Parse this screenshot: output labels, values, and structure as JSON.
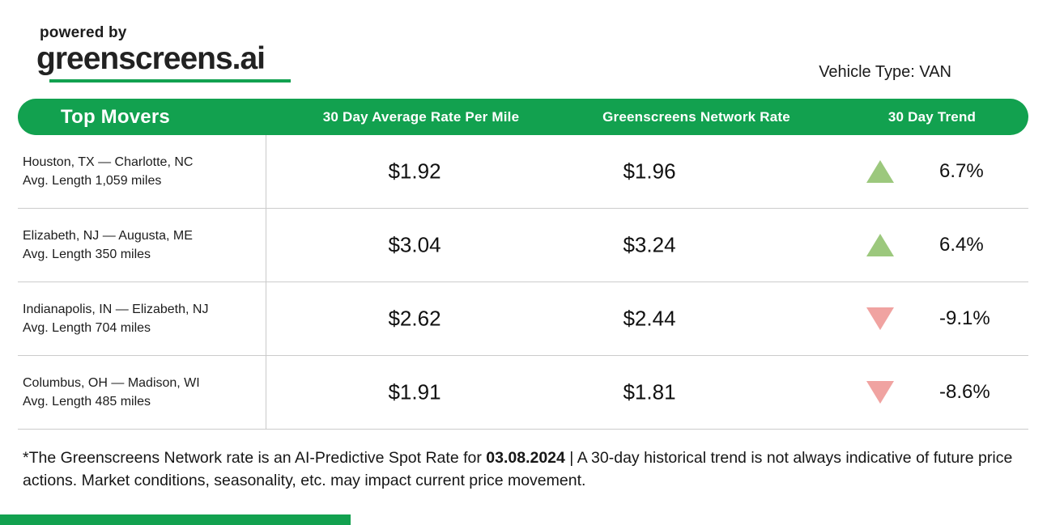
{
  "branding": {
    "powered_by": "powered by",
    "logo_text": "greenscreens.ai"
  },
  "meta": {
    "vehicle_type": "Vehicle Type: VAN"
  },
  "table": {
    "title": "Top Movers",
    "columns": {
      "avg_rate": "30 Day Average Rate Per Mile",
      "network_rate": "Greenscreens Network Rate",
      "trend": "30 Day Trend"
    },
    "rows": [
      {
        "route": "Houston, TX — Charlotte, NC",
        "avg_length": "Avg. Length 1,059 miles",
        "avg_rate": "$1.92",
        "network_rate": "$1.96",
        "trend_direction": "up",
        "trend_value": "6.7%"
      },
      {
        "route": "Elizabeth, NJ — Augusta, ME",
        "avg_length": "Avg. Length 350 miles",
        "avg_rate": "$3.04",
        "network_rate": "$3.24",
        "trend_direction": "up",
        "trend_value": "6.4%"
      },
      {
        "route": "Indianapolis, IN — Elizabeth, NJ",
        "avg_length": "Avg. Length 704 miles",
        "avg_rate": "$2.62",
        "network_rate": "$2.44",
        "trend_direction": "down",
        "trend_value": "-9.1%"
      },
      {
        "route": "Columbus, OH — Madison, WI",
        "avg_length": "Avg. Length 485 miles",
        "avg_rate": "$1.91",
        "network_rate": "$1.81",
        "trend_direction": "down",
        "trend_value": "-8.6%"
      }
    ]
  },
  "footer": {
    "disclaimer_prefix": "*The Greenscreens Network rate is an AI-Predictive Spot Rate for ",
    "date": "03.08.2024",
    "disclaimer_suffix": " | A 30-day historical trend is not always indicative of future price actions. Market conditions, seasonality, etc. may impact current price movement."
  },
  "colors": {
    "brand_green": "#12a14f",
    "trend_up": "#9cc87d",
    "trend_down": "#f0a3a1"
  }
}
